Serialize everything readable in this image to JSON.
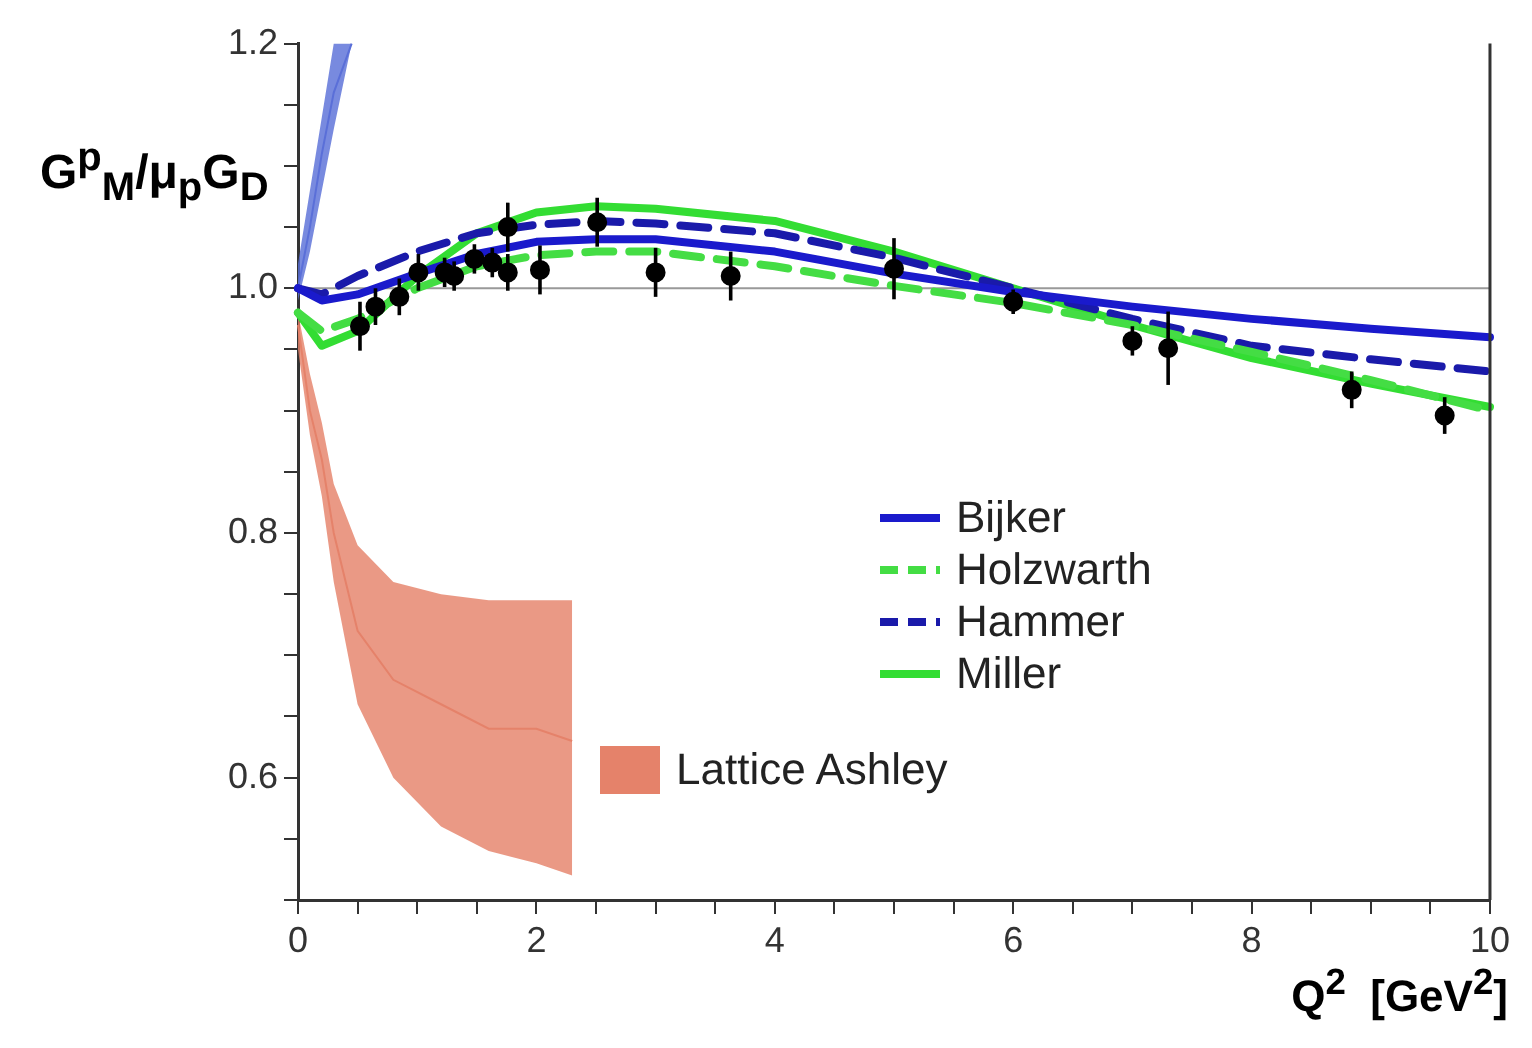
{
  "chart_data": {
    "type": "line",
    "xlabel": "Q$^{2}$  [GeV$^{2}$]",
    "ylabel": "G$^{p}$$_{M}$/μ$_{p}$G$_{D}$",
    "xlim": [
      0,
      10
    ],
    "ylim": [
      0.5,
      1.2
    ],
    "xticks": [
      0,
      {
        "value": 0.5,
        "label": null
      },
      {
        "value": 1,
        "label": null
      },
      {
        "value": 1.5,
        "label": null
      },
      2,
      {
        "value": 2.5,
        "label": null
      },
      {
        "value": 3,
        "label": null
      },
      {
        "value": 3.5,
        "label": null
      },
      4,
      {
        "value": 4.5,
        "label": null
      },
      {
        "value": 5,
        "label": null
      },
      {
        "value": 5.5,
        "label": null
      },
      6,
      {
        "value": 6.5,
        "label": null
      },
      {
        "value": 7,
        "label": null
      },
      {
        "value": 7.5,
        "label": null
      },
      8,
      {
        "value": 8.5,
        "label": null
      },
      {
        "value": 9,
        "label": null
      },
      {
        "value": 9.5,
        "label": null
      },
      10
    ],
    "yticks": [
      {
        "value": 0.5,
        "label": null
      },
      {
        "value": 0.55,
        "label": null
      },
      {
        "value": 0.6,
        "label": "0.6"
      },
      {
        "value": 0.65,
        "label": null
      },
      {
        "value": 0.7,
        "label": null
      },
      {
        "value": 0.75,
        "label": null
      },
      {
        "value": 0.8,
        "label": "0.8"
      },
      {
        "value": 0.85,
        "label": null
      },
      {
        "value": 0.9,
        "label": null
      },
      {
        "value": 0.95,
        "label": null
      },
      {
        "value": 1,
        "label": "1.0"
      },
      {
        "value": 1.05,
        "label": null
      },
      {
        "value": 1.1,
        "label": null
      },
      {
        "value": 1.15,
        "label": null
      },
      {
        "value": 1.2,
        "label": "1.2"
      }
    ],
    "grid": false,
    "legend": "right",
    "marker": "none",
    "ref_lines": [
      {
        "axis": "y",
        "value": 1,
        "color": "#999999"
      }
    ],
    "series": [
      {
        "type": "line",
        "name": "Lattice Ashley",
        "color": "#e5826a",
        "x": [
          0,
          0.1,
          0.2,
          0.3,
          0.5,
          0.8,
          1.2,
          1.6,
          2,
          2.3
        ],
        "values": [
          0.97,
          0.9,
          0.86,
          0.8,
          0.72,
          0.68,
          0.66,
          0.64,
          0.64,
          0.63
        ],
        "lower": [
          0.95,
          0.88,
          0.83,
          0.76,
          0.66,
          0.6,
          0.56,
          0.54,
          0.53,
          0.52
        ],
        "upper": [
          0.98,
          0.93,
          0.89,
          0.84,
          0.79,
          0.76,
          0.75,
          0.745,
          0.745,
          0.745
        ]
      },
      {
        "type": "line",
        "color": "#5a6fd8",
        "x": [
          0,
          0.1,
          0.2,
          0.3,
          0.45
        ],
        "values": [
          1.0,
          1.05,
          1.11,
          1.16,
          1.2
        ],
        "lower": [
          0.99,
          1.03,
          1.08,
          1.13,
          1.2
        ],
        "upper": [
          1.02,
          1.08,
          1.14,
          1.2,
          1.2
        ]
      },
      {
        "type": "line",
        "name": "Bijker",
        "color": "#1a1acc",
        "line_style": "solid",
        "x": [
          0,
          0.2,
          0.5,
          1,
          1.5,
          2,
          2.5,
          3,
          4,
          5,
          6,
          7,
          8,
          9,
          10
        ],
        "values": [
          1.0,
          0.99,
          0.995,
          1.012,
          1.028,
          1.038,
          1.04,
          1.04,
          1.03,
          1.012,
          0.997,
          0.985,
          0.975,
          0.967,
          0.96
        ]
      },
      {
        "type": "line",
        "name": "Holzwarth",
        "color": "#44dd44",
        "line_style": "dashed",
        "x": [
          0,
          0.2,
          0.5,
          1,
          1.5,
          2,
          2.5,
          3,
          4,
          5,
          6,
          7,
          8,
          9,
          10
        ],
        "values": [
          0.98,
          0.965,
          0.975,
          1.0,
          1.018,
          1.027,
          1.03,
          1.03,
          1.018,
          1.002,
          0.988,
          0.97,
          0.948,
          0.925,
          0.9
        ]
      },
      {
        "type": "line",
        "name": "Hammer",
        "color": "#1a1aaa",
        "line_style": "dashed",
        "x": [
          0,
          0.2,
          0.5,
          1,
          1.5,
          2,
          2.5,
          3,
          4,
          5,
          6,
          7,
          8,
          9,
          10
        ],
        "values": [
          1.0,
          0.995,
          1.01,
          1.03,
          1.045,
          1.052,
          1.055,
          1.053,
          1.045,
          1.025,
          1.0,
          0.975,
          0.953,
          0.942,
          0.932
        ]
      },
      {
        "type": "line",
        "name": "Miller",
        "color": "#33dd33",
        "line_style": "solid",
        "x": [
          0,
          0.2,
          0.5,
          1,
          1.5,
          2,
          2.5,
          3,
          4,
          5,
          6,
          7,
          8,
          9,
          10
        ],
        "values": [
          0.98,
          0.953,
          0.965,
          1.01,
          1.045,
          1.062,
          1.067,
          1.065,
          1.055,
          1.03,
          1.0,
          0.97,
          0.943,
          0.922,
          0.903
        ]
      },
      {
        "type": "scatter",
        "color": "#000000",
        "marker": "circle",
        "x": [
          0.52,
          0.65,
          0.85,
          1.01,
          1.23,
          1.31,
          1.48,
          1.63,
          1.76,
          1.76,
          2.03,
          2.51,
          3.0,
          3.63,
          5.0,
          6.0,
          7.0,
          7.3,
          8.84,
          9.62
        ],
        "values": [
          0.969,
          0.985,
          0.993,
          1.013,
          1.013,
          1.01,
          1.024,
          1.021,
          1.013,
          1.05,
          1.015,
          1.054,
          1.013,
          1.01,
          1.016,
          0.989,
          0.957,
          0.951,
          0.917,
          0.896
        ],
        "errors": [
          0.02,
          0.015,
          0.015,
          0.015,
          0.012,
          0.012,
          0.012,
          0.012,
          0.015,
          0.02,
          0.02,
          0.02,
          0.02,
          0.02,
          0.025,
          0.01,
          0.012,
          0.03,
          0.015,
          0.015
        ]
      }
    ]
  }
}
